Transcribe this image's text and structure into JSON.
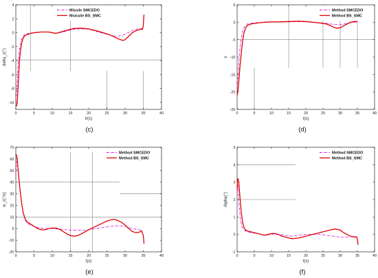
{
  "colors": {
    "series_a": "#d000d0",
    "series_b": "#e00000",
    "axis": "#000000",
    "guide": "#7f7f7f"
  },
  "chart_data": [
    {
      "type": "line",
      "panel_label": "(c)",
      "xlabel": "t/(s)",
      "ylabel": "delta_z(°)",
      "xlim": [
        0,
        40
      ],
      "ylim": [
        -11,
        4
      ],
      "xticks": [
        0,
        5,
        10,
        15,
        20,
        25,
        30,
        35,
        40
      ],
      "yticks": [
        -10,
        -8,
        -6,
        -4,
        -2,
        0,
        2,
        4
      ],
      "legend": "top-center",
      "guides": [
        {
          "type": "v",
          "x": 4,
          "y1": -5.5,
          "y2": 4
        },
        {
          "type": "v",
          "x": 15,
          "y1": -5.5,
          "y2": 4
        },
        {
          "type": "v",
          "x": 25,
          "y1": -11,
          "y2": -5.5
        },
        {
          "type": "v",
          "x": 35,
          "y1": -11,
          "y2": -5.5
        },
        {
          "type": "h",
          "y": -3.9,
          "x1": 0,
          "x2": 40
        }
      ],
      "series": [
        {
          "name": "Missile SMCEDO",
          "style": "dashdot",
          "x": [
            0,
            0.3,
            0.6,
            1,
            1.4,
            2,
            2.6,
            3.5,
            5,
            7,
            9,
            11,
            13,
            15,
            16,
            18,
            20,
            22,
            24,
            26,
            27,
            28,
            29,
            30,
            31,
            32,
            33,
            34,
            34.7
          ],
          "y": [
            -9.8,
            -8,
            -4.5,
            -2.5,
            -1.2,
            -0.5,
            -0.2,
            -0.1,
            -0.05,
            0.1,
            0.1,
            -0.1,
            0.1,
            0.4,
            0.5,
            0.55,
            0.5,
            0.2,
            -0.1,
            -0.35,
            -0.45,
            -0.5,
            -0.4,
            -0.2,
            0.05,
            0.3,
            0.5,
            0.6,
            0.6
          ]
        },
        {
          "name": "Msissile BS_SMC",
          "style": "solid",
          "x": [
            0,
            0.2,
            0.4,
            0.6,
            0.8,
            1,
            1.3,
            1.6,
            2,
            2.5,
            3,
            4,
            5,
            7,
            9,
            11,
            13,
            15,
            16,
            18,
            20,
            22,
            24,
            26,
            27,
            28,
            29,
            29.5,
            30,
            31,
            32,
            33,
            34,
            34.8,
            35,
            35.1,
            35.2
          ],
          "y": [
            -10.4,
            -10.5,
            -10,
            -8,
            -6,
            -4,
            -2.5,
            -1.5,
            -0.8,
            -0.4,
            -0.3,
            -0.1,
            0,
            0.1,
            0.1,
            -0.1,
            0.2,
            0.5,
            0.6,
            0.65,
            0.55,
            0.3,
            0,
            -0.35,
            -0.6,
            -0.85,
            -1.05,
            -1.1,
            -1.0,
            -0.5,
            0,
            0.3,
            0.45,
            0.5,
            1,
            2,
            2.6
          ]
        }
      ]
    },
    {
      "type": "line",
      "panel_label": "(d)",
      "xlabel": "t(s)",
      "ylabel": "s",
      "xlim": [
        0,
        40
      ],
      "ylim": [
        -25,
        5
      ],
      "xticks": [
        0,
        5,
        10,
        15,
        20,
        25,
        30,
        35,
        40
      ],
      "yticks": [
        -25,
        -20,
        -15,
        -10,
        -5,
        0,
        5
      ],
      "legend": "top-right",
      "guides": [
        {
          "type": "v",
          "x": 5,
          "y1": -25,
          "y2": -13
        },
        {
          "type": "v",
          "x": 15,
          "y1": -13,
          "y2": 5
        },
        {
          "type": "v",
          "x": 25,
          "y1": -13,
          "y2": 5
        },
        {
          "type": "v",
          "x": 30,
          "y1": -13,
          "y2": 5
        },
        {
          "type": "v",
          "x": 35,
          "y1": -13,
          "y2": 5
        },
        {
          "type": "h",
          "y": -5,
          "x1": 0,
          "x2": 40
        }
      ],
      "series": [
        {
          "name": "Method SMCEDO",
          "style": "dashdot",
          "x": [
            0,
            0.3,
            0.6,
            1,
            1.5,
            2,
            2.5,
            3,
            4,
            6,
            8,
            10,
            12,
            15,
            18,
            20,
            22,
            24,
            26,
            28,
            30,
            32,
            34,
            35
          ],
          "y": [
            -19,
            -15,
            -10,
            -6,
            -3,
            -1.5,
            -0.8,
            -0.5,
            -0.3,
            -0.1,
            0,
            0.05,
            0.05,
            0.1,
            0.2,
            0.1,
            0,
            -0.1,
            -0.3,
            -0.6,
            -0.7,
            -0.3,
            0,
            0
          ]
        },
        {
          "name": "Method BS_SMC",
          "style": "solid",
          "x": [
            0,
            0.2,
            0.5,
            0.8,
            1.2,
            1.6,
            2,
            2.5,
            3,
            4,
            6,
            8,
            10,
            12,
            15,
            18,
            20,
            22,
            24,
            26,
            27,
            28,
            29,
            30,
            31,
            32,
            33,
            34,
            35
          ],
          "y": [
            -21,
            -20,
            -17,
            -13,
            -9,
            -5.5,
            -3,
            -1.6,
            -0.9,
            -0.5,
            -0.2,
            0,
            0.1,
            0.1,
            0.2,
            0.3,
            0.2,
            0,
            -0.2,
            -0.5,
            -0.9,
            -1.4,
            -1.7,
            -1.6,
            -1,
            -0.5,
            0,
            0.2,
            0.2
          ]
        }
      ]
    },
    {
      "type": "line",
      "panel_label": "(e)",
      "xlabel": "t(s)",
      "ylabel": "w_z(°/s)",
      "xlim": [
        0,
        40
      ],
      "ylim": [
        -20,
        70
      ],
      "xticks": [
        0,
        5,
        10,
        15,
        20,
        25,
        30,
        35,
        40
      ],
      "yticks": [
        -20,
        -10,
        0,
        10,
        20,
        30,
        40,
        50,
        60,
        70
      ],
      "legend": "top-right",
      "guides": [
        {
          "type": "v",
          "x": 15,
          "y1": -20,
          "y2": 66
        },
        {
          "type": "v",
          "x": 21,
          "y1": -20,
          "y2": 66
        },
        {
          "type": "h",
          "y": 40,
          "x1": 0,
          "x2": 28.5
        },
        {
          "type": "h",
          "y": 30,
          "x1": 28.5,
          "x2": 40
        },
        {
          "type": "h",
          "y": 10,
          "x1": 0,
          "x2": 40
        }
      ],
      "series": [
        {
          "name": "Method SMCEDO",
          "style": "dashdot",
          "x": [
            0,
            0.2,
            0.5,
            0.8,
            1.2,
            1.6,
            2,
            2.5,
            3,
            4,
            5,
            6,
            8,
            10,
            12,
            14,
            16,
            18,
            20,
            22,
            24,
            26,
            28,
            30,
            32,
            34,
            35
          ],
          "y": [
            45,
            58,
            55,
            45,
            32,
            22,
            14,
            8,
            5,
            3,
            2,
            1,
            0,
            0,
            -0.5,
            -1,
            -1.5,
            -1.5,
            -1,
            0,
            1,
            2,
            2.5,
            2,
            0,
            -1,
            -2
          ]
        },
        {
          "name": "Method BS_SMC",
          "style": "solid",
          "x": [
            0,
            0.2,
            0.4,
            0.6,
            0.8,
            1,
            1.3,
            1.6,
            2,
            2.5,
            3,
            3.5,
            4,
            5,
            6,
            7,
            8,
            9,
            10,
            11,
            12,
            13,
            14,
            15,
            16,
            17,
            18,
            20,
            22,
            24,
            25,
            26,
            27,
            28,
            29,
            30,
            31,
            32,
            33,
            34,
            34.5,
            35,
            35.2
          ],
          "y": [
            64,
            63,
            60,
            52,
            45,
            38,
            30,
            22,
            14,
            9,
            6,
            5,
            4,
            2,
            0,
            -1,
            -1,
            0,
            0.5,
            0.5,
            -0.5,
            -2.5,
            -4.5,
            -6,
            -6.5,
            -6,
            -4.5,
            -1,
            2,
            5,
            6.5,
            7.5,
            8,
            7,
            5.5,
            3,
            0,
            -2.5,
            -3.5,
            -3,
            -2,
            -6,
            -13
          ]
        }
      ]
    },
    {
      "type": "line",
      "panel_label": "(f)",
      "xlabel": "t(s)",
      "ylabel": "Alpha(°)",
      "xlim": [
        0,
        40
      ],
      "ylim": [
        -1,
        5
      ],
      "xticks": [
        0,
        5,
        10,
        15,
        20,
        25,
        30,
        35,
        40
      ],
      "yticks": [
        -1,
        0,
        1,
        2,
        3,
        4,
        5
      ],
      "legend": "top-right",
      "guides": [
        {
          "type": "h",
          "y": 4,
          "x1": 0,
          "x2": 17
        },
        {
          "type": "h",
          "y": 2,
          "x1": 0,
          "x2": 17
        }
      ],
      "series": [
        {
          "name": "Method SMCEDO",
          "style": "dashdot",
          "x": [
            0,
            0.15,
            0.3,
            0.6,
            1,
            1.5,
            2,
            3,
            4,
            6,
            8,
            10,
            12,
            14,
            16,
            18,
            20,
            22,
            24,
            26,
            28,
            30,
            32,
            34,
            35
          ],
          "y": [
            2.4,
            2.9,
            2.7,
            1.6,
            0.8,
            0.4,
            0.25,
            0.15,
            0.1,
            0.05,
            -0.05,
            0,
            0,
            -0.05,
            -0.1,
            -0.05,
            0,
            0,
            0,
            -0.05,
            -0.1,
            -0.15,
            -0.15,
            -0.1,
            -0.15
          ]
        },
        {
          "name": "Method BS_SMC",
          "style": "solid",
          "x": [
            0,
            0.1,
            0.25,
            0.5,
            0.8,
            1.2,
            1.6,
            2,
            2.5,
            3,
            4,
            5,
            6,
            7,
            8,
            9,
            10,
            11,
            12,
            13,
            14,
            15,
            16,
            18,
            20,
            22,
            24,
            26,
            28,
            29,
            30,
            31,
            32,
            33,
            34,
            34.8,
            35,
            35.2
          ],
          "y": [
            2.6,
            3.1,
            3.2,
            3.0,
            2.2,
            1.3,
            0.7,
            0.4,
            0.25,
            0.2,
            0.15,
            0.1,
            0.05,
            0,
            -0.05,
            0,
            0.05,
            0.05,
            0,
            -0.1,
            -0.15,
            -0.2,
            -0.25,
            -0.2,
            -0.1,
            0,
            0.1,
            0.2,
            0.3,
            0.3,
            0.25,
            0.1,
            0,
            -0.1,
            -0.15,
            -0.15,
            -0.3,
            -0.6
          ]
        }
      ]
    }
  ]
}
